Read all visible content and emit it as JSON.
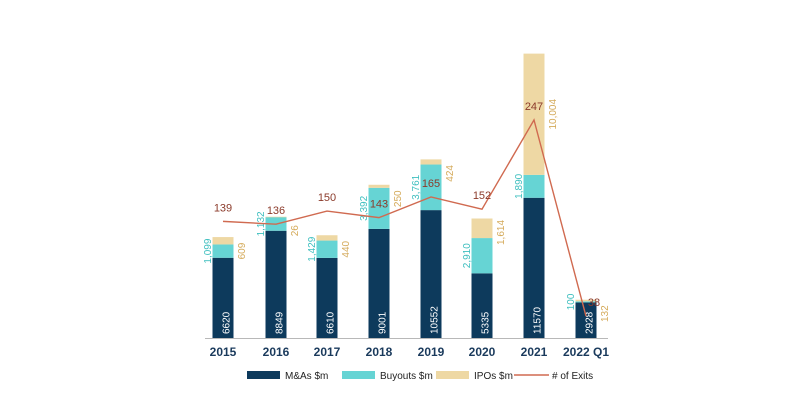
{
  "chart_data": {
    "type": "bar",
    "stacked": true,
    "categories": [
      "2015",
      "2016",
      "2017",
      "2018",
      "2019",
      "2020",
      "2021",
      "2022 Q1"
    ],
    "series": [
      {
        "name": "M&As $m",
        "color": "#0d3a5c",
        "values": [
          6620,
          8849,
          6610,
          9001,
          10552,
          5335,
          11570,
          2928
        ],
        "labels": [
          "6620",
          "8849",
          "6610",
          "9001",
          "10552",
          "5335",
          "11570",
          "2928"
        ]
      },
      {
        "name": "Buyouts $m",
        "color": "#66d4d4",
        "values": [
          1099,
          1132,
          1429,
          3392,
          3761,
          2910,
          1890,
          100
        ],
        "labels": [
          "1,099",
          "1,132",
          "1,429",
          "3,392",
          "3,761",
          "2,910",
          "1,890",
          "100"
        ]
      },
      {
        "name": "IPOs $m",
        "color": "#eed8a4",
        "values": [
          609,
          26,
          440,
          250,
          424,
          1614,
          10004,
          132
        ],
        "labels": [
          "609",
          "26",
          "440",
          "250",
          "424",
          "1,614",
          "10,004",
          "132"
        ]
      }
    ],
    "line": {
      "name": "# of Exits",
      "color": "#d06a50",
      "values": [
        139,
        136,
        150,
        143,
        165,
        152,
        247,
        38
      ],
      "labels": [
        "139",
        "136",
        "150",
        "143",
        "165",
        "152",
        "247",
        "38"
      ]
    },
    "title": "",
    "xlabel": "",
    "ylabel": "",
    "legend": "bottom",
    "grid": false
  }
}
